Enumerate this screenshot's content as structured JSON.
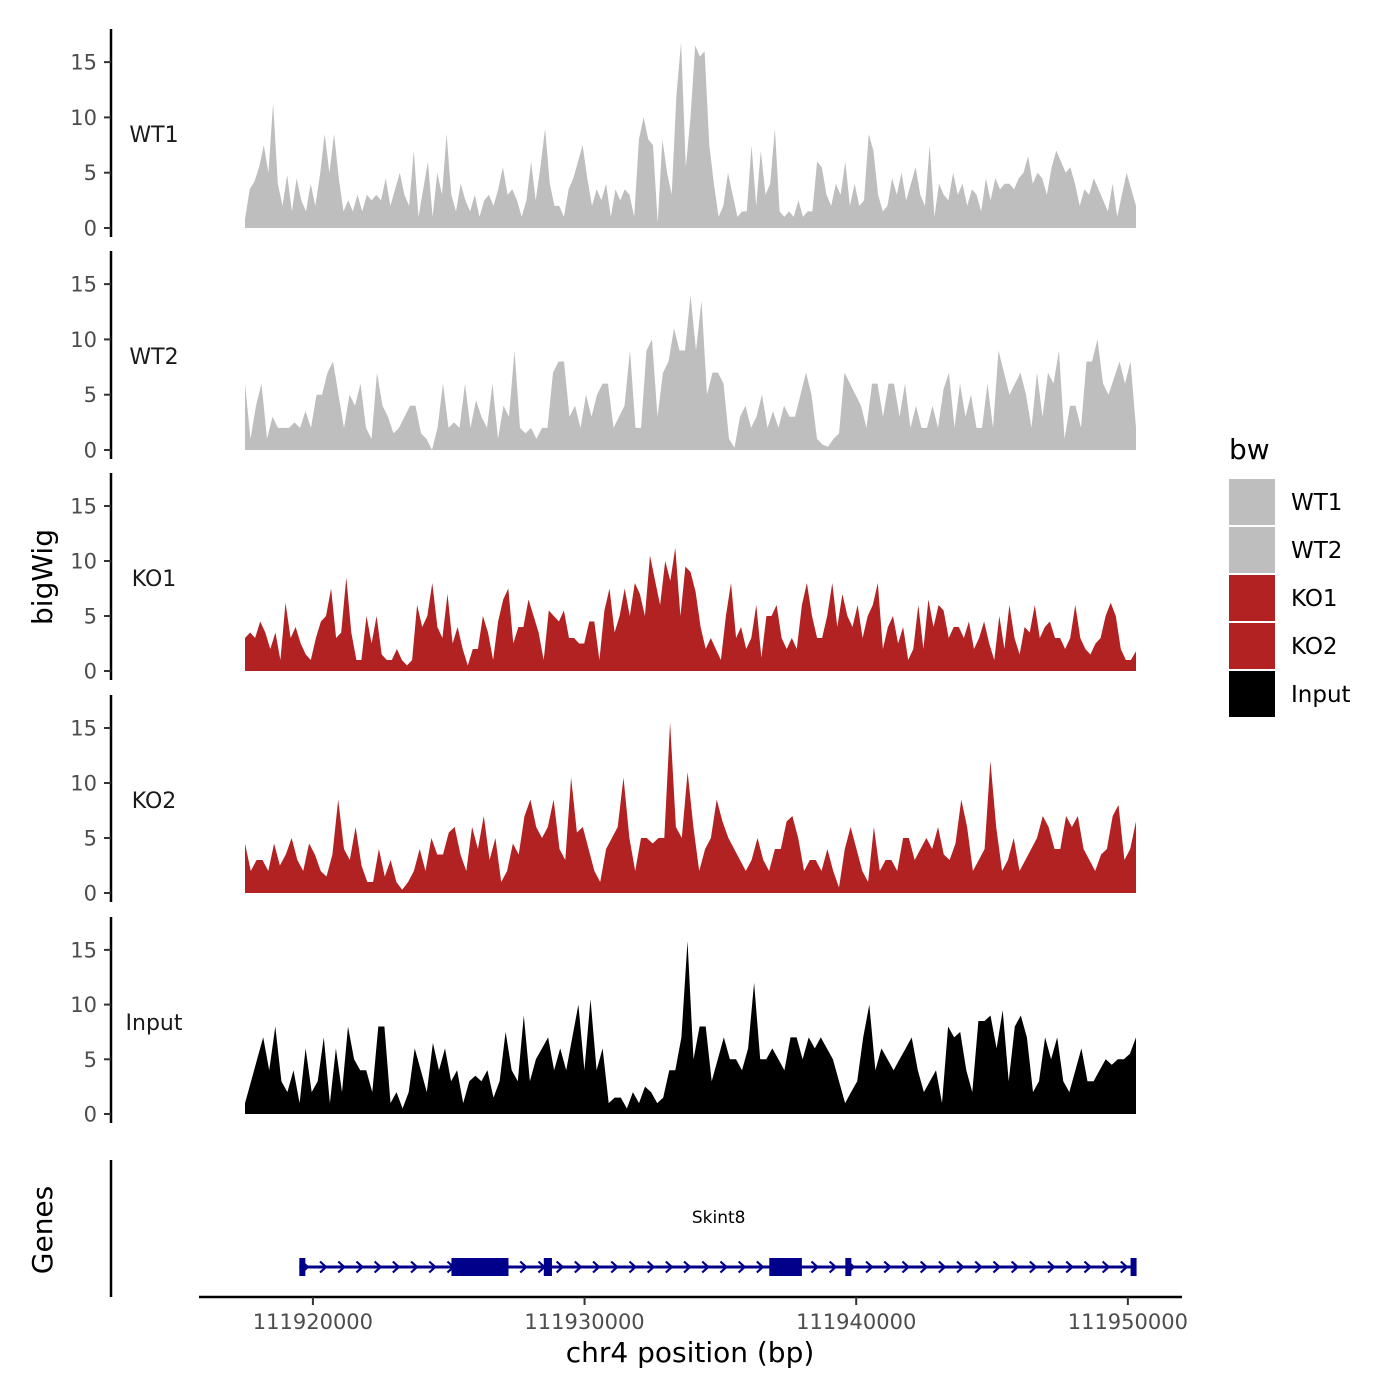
{
  "chart_data": {
    "type": "area",
    "ylabel": "bigWig",
    "xlabel": "chr4 position (bp)",
    "x_range": [
      111917500,
      111950300
    ],
    "ylim": [
      0,
      17
    ],
    "yticks": [
      0,
      5,
      10,
      15
    ],
    "xticks": [
      111920000,
      111930000,
      111940000,
      111950000
    ],
    "xtick_labels": [
      "111920000",
      "111930000",
      "111940000",
      "111950000"
    ],
    "gene_track_label": "Genes",
    "legend": {
      "title": "bw",
      "entries": [
        {
          "label": "WT1",
          "color": "#bebebe"
        },
        {
          "label": "WT2",
          "color": "#bebebe"
        },
        {
          "label": "KO1",
          "color": "#b22222"
        },
        {
          "label": "KO2",
          "color": "#b22222"
        },
        {
          "label": "Input",
          "color": "#000000"
        }
      ]
    },
    "series": [
      {
        "name": "WT1",
        "color": "#bebebe",
        "values": [
          0.8,
          3.5,
          4.2,
          5.5,
          7.5,
          5,
          11.3,
          4,
          2,
          4.8,
          1.5,
          4.5,
          2.5,
          1.5,
          4,
          2,
          4.8,
          8.5,
          5,
          8.5,
          4.5,
          1.5,
          2.5,
          1.5,
          3,
          1.5,
          3,
          2.5,
          3,
          2.5,
          4.5,
          2,
          3.5,
          5,
          3,
          2,
          7,
          1,
          3.5,
          6,
          1,
          5,
          3,
          8.5,
          3,
          1.5,
          4,
          2.5,
          1.5,
          3,
          1,
          2.5,
          3,
          2,
          3.5,
          5.5,
          3,
          3.5,
          2.5,
          1,
          2.5,
          6,
          2.5,
          5.5,
          9,
          4,
          2,
          2,
          1,
          3.5,
          4.5,
          6,
          7.5,
          4.5,
          2,
          3.5,
          2.5,
          4,
          1,
          3.5,
          2.5,
          3.5,
          3,
          1,
          8,
          10,
          8,
          7.5,
          0.5,
          8,
          5,
          3,
          12,
          16.8,
          5.5,
          10,
          16.5,
          15.5,
          16,
          7.5,
          4,
          1,
          2,
          5,
          3,
          1,
          1.5,
          1.5,
          7.5,
          2,
          7,
          3,
          4,
          9,
          1.5,
          1,
          1.5,
          1,
          2.5,
          1,
          1.5,
          1.5,
          6,
          5.5,
          3,
          2,
          4,
          3,
          6,
          2,
          4,
          2,
          2.5,
          8.5,
          7,
          3,
          1.5,
          2,
          4.5,
          3,
          5,
          2.5,
          4,
          5.5,
          3,
          2,
          7.5,
          1,
          4,
          3,
          2.5,
          5,
          3,
          4,
          2,
          3.5,
          3,
          1.5,
          4.5,
          2.5,
          4.5,
          3.5,
          4,
          4,
          3.5,
          4.5,
          5,
          6.5,
          4,
          5,
          4.5,
          3,
          5.5,
          7,
          6,
          5,
          5.5,
          4,
          2,
          3.5,
          3,
          4.5,
          3.5,
          2.5,
          1.5,
          4,
          1,
          3,
          5,
          3.5,
          2
        ]
      },
      {
        "name": "WT2",
        "color": "#bebebe",
        "values": [
          6,
          1,
          4,
          6,
          1,
          3,
          2,
          2,
          2,
          2.5,
          2,
          3.5,
          2,
          5,
          5,
          7,
          8,
          5,
          2,
          5,
          4,
          6,
          2,
          1,
          7,
          4,
          3,
          1.5,
          2,
          3,
          4,
          4,
          1.5,
          1,
          0,
          2,
          6,
          2,
          2.5,
          2,
          6,
          2,
          4.5,
          3,
          2,
          6,
          1,
          4,
          3,
          9,
          2,
          1.5,
          2,
          1,
          2,
          2,
          7,
          8,
          8,
          3,
          4,
          2,
          5,
          3,
          5,
          6,
          6,
          2,
          3,
          4,
          9,
          2,
          2,
          9,
          10,
          3,
          7,
          8,
          11,
          9,
          9,
          14,
          9,
          13.5,
          5,
          7,
          7,
          6,
          1,
          0.2,
          3,
          4,
          2,
          3,
          5,
          2,
          3.5,
          2,
          4,
          3,
          3,
          5,
          7,
          5,
          1,
          0.5,
          0.3,
          1,
          1.5,
          7,
          6,
          5,
          4,
          2,
          6,
          6,
          3,
          6,
          6,
          3,
          6,
          2,
          4,
          2,
          2,
          4,
          2,
          5.5,
          7,
          2,
          6,
          3,
          5,
          2,
          2,
          6,
          2,
          9,
          7,
          5,
          6,
          7,
          5,
          2,
          7,
          3,
          7,
          6,
          9,
          1,
          4,
          4,
          2,
          8,
          8,
          10,
          6,
          5,
          6.5,
          8,
          6,
          8,
          2
        ]
      },
      {
        "name": "KO1",
        "color": "#b22222",
        "values": [
          3,
          3.5,
          3,
          4.5,
          3.5,
          2,
          3.5,
          1,
          6.2,
          3,
          4,
          2.5,
          1.5,
          1,
          3,
          4.5,
          5,
          7.5,
          3,
          3.5,
          8.5,
          3.5,
          1,
          1,
          5,
          2.5,
          5,
          1.5,
          1,
          1,
          2,
          1,
          0.5,
          1,
          6,
          4,
          5,
          8,
          4,
          3,
          7,
          2.5,
          4,
          2,
          0.5,
          2,
          2,
          5,
          3.5,
          1,
          4.5,
          6.5,
          7.5,
          2.5,
          4,
          4,
          6.5,
          5,
          3.5,
          1,
          5.5,
          5,
          4.5,
          5.5,
          3,
          3,
          2.5,
          2.5,
          4.5,
          4.5,
          1,
          5.5,
          7.5,
          3.5,
          5,
          7.5,
          5,
          8,
          7,
          5,
          10.5,
          8.2,
          6,
          10,
          8.2,
          11.2,
          5,
          9.5,
          9,
          7.2,
          4,
          2,
          3,
          2,
          1,
          5,
          8,
          3,
          4,
          2,
          3,
          6,
          1.2,
          5,
          5,
          6,
          3,
          2,
          3,
          2,
          6,
          8,
          5,
          3,
          3,
          5,
          8,
          4,
          7,
          5,
          4,
          6,
          3,
          5,
          6,
          8,
          2,
          4,
          5,
          2.5,
          4,
          1,
          2,
          6,
          2,
          6.5,
          4,
          6,
          5.5,
          3,
          4,
          4,
          3,
          4.5,
          2,
          3,
          4.5,
          2.5,
          1,
          5,
          2,
          6,
          3,
          1.5,
          4,
          3.5,
          6,
          3,
          4,
          4.5,
          3,
          3,
          2,
          3,
          6,
          3,
          2,
          1.5,
          2.5,
          3,
          5,
          6.2,
          5,
          2,
          1,
          1,
          1.8
        ]
      },
      {
        "name": "KO2",
        "color": "#b22222",
        "values": [
          4.5,
          2,
          3,
          3,
          2,
          4.5,
          2.5,
          3.5,
          5,
          3,
          2,
          4.5,
          3.5,
          2,
          1.5,
          3.5,
          8.5,
          4,
          3,
          6,
          2.5,
          1,
          1,
          4,
          1.5,
          3,
          1,
          0.3,
          1,
          2,
          4,
          2,
          5,
          3.5,
          3.5,
          5.5,
          6,
          3.5,
          2,
          6,
          4,
          7,
          3,
          5,
          1,
          2,
          4.5,
          3.5,
          7,
          8.5,
          6,
          5,
          6,
          8.5,
          4,
          3,
          10.5,
          5.5,
          6,
          4,
          2,
          1,
          4,
          5,
          6,
          10.5,
          5,
          2,
          5,
          5,
          4.5,
          5,
          5,
          15.5,
          6,
          5,
          11,
          6,
          2,
          4,
          5,
          8.5,
          6.5,
          5,
          4,
          3,
          2,
          3,
          5,
          3,
          2,
          4,
          4,
          6.5,
          7,
          5,
          2,
          3,
          3,
          2,
          4,
          2,
          0.5,
          4,
          6,
          4,
          2,
          1,
          6,
          2,
          3,
          3,
          2,
          5,
          5,
          3,
          4,
          5,
          4,
          6,
          3.5,
          3,
          4.5,
          8.5,
          6,
          2,
          3,
          4,
          12,
          6,
          2,
          3,
          5,
          2,
          3,
          4,
          5,
          7,
          6,
          4,
          4,
          7,
          6,
          7,
          4,
          3,
          2,
          3.5,
          4,
          7,
          8,
          3,
          4,
          6.5
        ]
      },
      {
        "name": "Input",
        "color": "#000000",
        "values": [
          1,
          3,
          5,
          7,
          4,
          8,
          3,
          2,
          4,
          1,
          6,
          2,
          3,
          7,
          1,
          6,
          2,
          8,
          5,
          4,
          4,
          2,
          8,
          8,
          1,
          2,
          0.5,
          2,
          6,
          4,
          2,
          6.5,
          4,
          6,
          3,
          4,
          1,
          3,
          3.5,
          3,
          4,
          1.5,
          3,
          7.5,
          4,
          3,
          9,
          3,
          5,
          6,
          7,
          4,
          6,
          4,
          7,
          10,
          4,
          10.5,
          4,
          6,
          1,
          1.5,
          1.5,
          0.5,
          2,
          1,
          2.5,
          2,
          1,
          1.5,
          4,
          4,
          7,
          15.8,
          5,
          8,
          8,
          3,
          5,
          7,
          5,
          5,
          4,
          6,
          12,
          5,
          5,
          6,
          5,
          4,
          7,
          7,
          5,
          7,
          6,
          7,
          6,
          5,
          3,
          1,
          2,
          3,
          7,
          10,
          4,
          6,
          5,
          4,
          5,
          6,
          7,
          4,
          2,
          3,
          4,
          1,
          8,
          7,
          7.5,
          4,
          2,
          8.5,
          8.5,
          9,
          6,
          9.5,
          3,
          8,
          9,
          7,
          2,
          3,
          7,
          5,
          7,
          3,
          2,
          4,
          6,
          3,
          3,
          4,
          5,
          4.5,
          5,
          5,
          5.5,
          7
        ]
      }
    ],
    "gene": {
      "name": "Skint8",
      "start": 111919500,
      "end": 111950300,
      "strand": "+",
      "color": "#00008b",
      "exons": [
        [
          111919500,
          111919700
        ],
        [
          111925100,
          111927200
        ],
        [
          111928500,
          111928800
        ],
        [
          111936800,
          111938000
        ],
        [
          111939600,
          111939800
        ],
        [
          111950100,
          111950300
        ]
      ]
    }
  }
}
